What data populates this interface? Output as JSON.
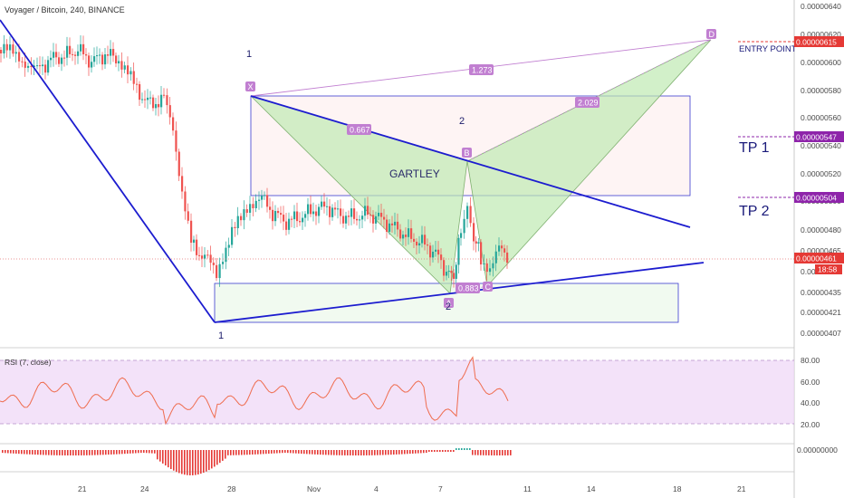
{
  "header": {
    "title": "Voyager / Bitcoin, 240, BINANCE"
  },
  "price_axis": {
    "ticks": [
      "0.00000640",
      "0.00000620",
      "0.00000600",
      "0.00000580",
      "0.00000560",
      "0.00000540",
      "0.00000520",
      "0.00000500",
      "0.00000480",
      "0.00000465",
      "0.00000450",
      "0.00000435",
      "0.00000421",
      "0.00000407"
    ],
    "badges": {
      "entry": "0.00000615",
      "tp1": "0.00000547",
      "tp2": "0.00000504",
      "current": "0.00000461",
      "countdown": "18:58"
    }
  },
  "rsi": {
    "title": "RSI (7, close)",
    "ticks": [
      "80.00",
      "60.00",
      "40.00",
      "20.00"
    ]
  },
  "macd": {
    "tick": "0.00000000"
  },
  "date_axis": {
    "labels": [
      "21",
      "24",
      "28",
      "Nov",
      "4",
      "7",
      "11",
      "14",
      "18",
      "21"
    ]
  },
  "annotations": {
    "entry_point": "ENTRY POINT",
    "tp1": "TP 1",
    "tp2": "TP 2",
    "gartley": "GARTLEY",
    "wave_1_top": "1",
    "wave_1_bottom": "1",
    "wave_2_box": "2",
    "wave_2_bottom": "2"
  },
  "pattern": {
    "points": {
      "x": "X",
      "a": "A",
      "b": "B",
      "c": "C",
      "d": "D"
    },
    "ratios": {
      "xb": "0.667",
      "ac": "0.883",
      "bd": "2.029",
      "xd": "1.273"
    }
  },
  "colors": {
    "bull": "#26a69a",
    "bear": "#ef5350",
    "trendline": "#1c1ccf",
    "pattern_label": "#c17fd1",
    "entry": "#e53935",
    "tp": "#8e24aa",
    "rsi_line": "#ef6c4e",
    "rsi_band": "#efd8f7"
  }
}
